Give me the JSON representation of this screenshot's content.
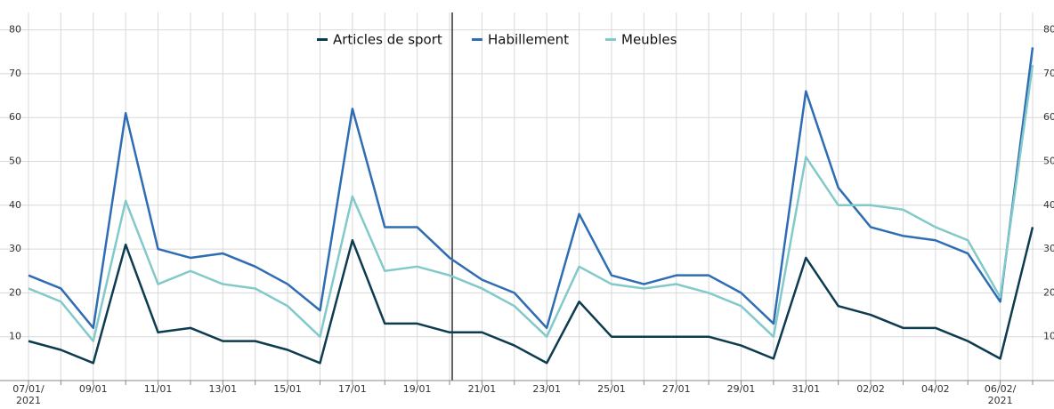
{
  "chart_data": {
    "type": "line",
    "categories": [
      "07/01/\n2021",
      null,
      "09/01",
      null,
      "11/01",
      null,
      "13/01",
      null,
      "15/01",
      null,
      "17/01",
      null,
      "19/01",
      null,
      "21/01",
      null,
      "23/01",
      null,
      "25/01",
      null,
      "27/01",
      null,
      "29/01",
      null,
      "31/01",
      null,
      "02/02",
      null,
      "04/02",
      null,
      "06/02/\n2021",
      null
    ],
    "series": [
      {
        "name": "Articles de sport",
        "color": "#0d3b4f",
        "values": [
          9,
          7,
          4,
          31,
          11,
          12,
          9,
          9,
          7,
          4,
          32,
          13,
          13,
          11,
          11,
          8,
          4,
          18,
          10,
          10,
          10,
          10,
          8,
          5,
          28,
          17,
          15,
          12,
          12,
          9,
          5,
          35
        ]
      },
      {
        "name": "Habillement",
        "color": "#2e6db4",
        "values": [
          24,
          21,
          12,
          61,
          30,
          28,
          29,
          26,
          22,
          16,
          62,
          35,
          35,
          28,
          23,
          20,
          12,
          38,
          24,
          22,
          24,
          24,
          20,
          13,
          66,
          44,
          35,
          33,
          32,
          29,
          18,
          76
        ]
      },
      {
        "name": "Meubles",
        "color": "#82c9c9",
        "values": [
          21,
          18,
          9,
          41,
          22,
          25,
          22,
          21,
          17,
          10,
          42,
          25,
          26,
          24,
          21,
          17,
          10,
          26,
          22,
          21,
          22,
          20,
          17,
          10,
          51,
          40,
          40,
          39,
          35,
          32,
          19,
          72
        ]
      }
    ],
    "ylim": [
      0,
      80
    ],
    "yticks": [
      10,
      20,
      30,
      40,
      50,
      60,
      70,
      80
    ],
    "grid": true,
    "legend": "top"
  }
}
